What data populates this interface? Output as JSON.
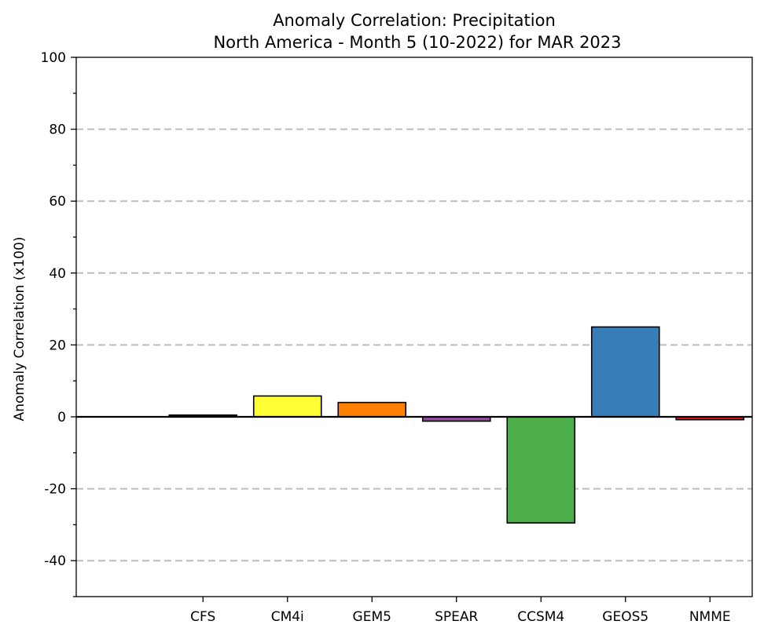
{
  "chart_data": {
    "type": "bar",
    "title": "Anomaly Correlation: Precipitation",
    "subtitle": "North America - Month 5 (10-2022) for MAR 2023",
    "xlabel": "",
    "ylabel": "Anomaly Correlation (x100)",
    "ylim": [
      -50,
      100
    ],
    "yticks": [
      -40,
      -20,
      0,
      20,
      40,
      60,
      80,
      100
    ],
    "ytick_labels": [
      "-40",
      "-20",
      "0",
      "20",
      "40",
      "60",
      "80",
      "100"
    ],
    "grid": "dashed horizontal lines at major y ticks",
    "categories": [
      "CFS",
      "CM4i",
      "GEM5",
      "SPEAR",
      "CCSM4",
      "GEOS5",
      "NMME"
    ],
    "values": [
      0.5,
      5.8,
      4.0,
      -1.2,
      -29.5,
      25.0,
      -0.8
    ],
    "colors": [
      "#000000",
      "#ffff33",
      "#ff7f00",
      "#984ea3",
      "#4daf4a",
      "#377eb8",
      "#e41a1c"
    ]
  }
}
